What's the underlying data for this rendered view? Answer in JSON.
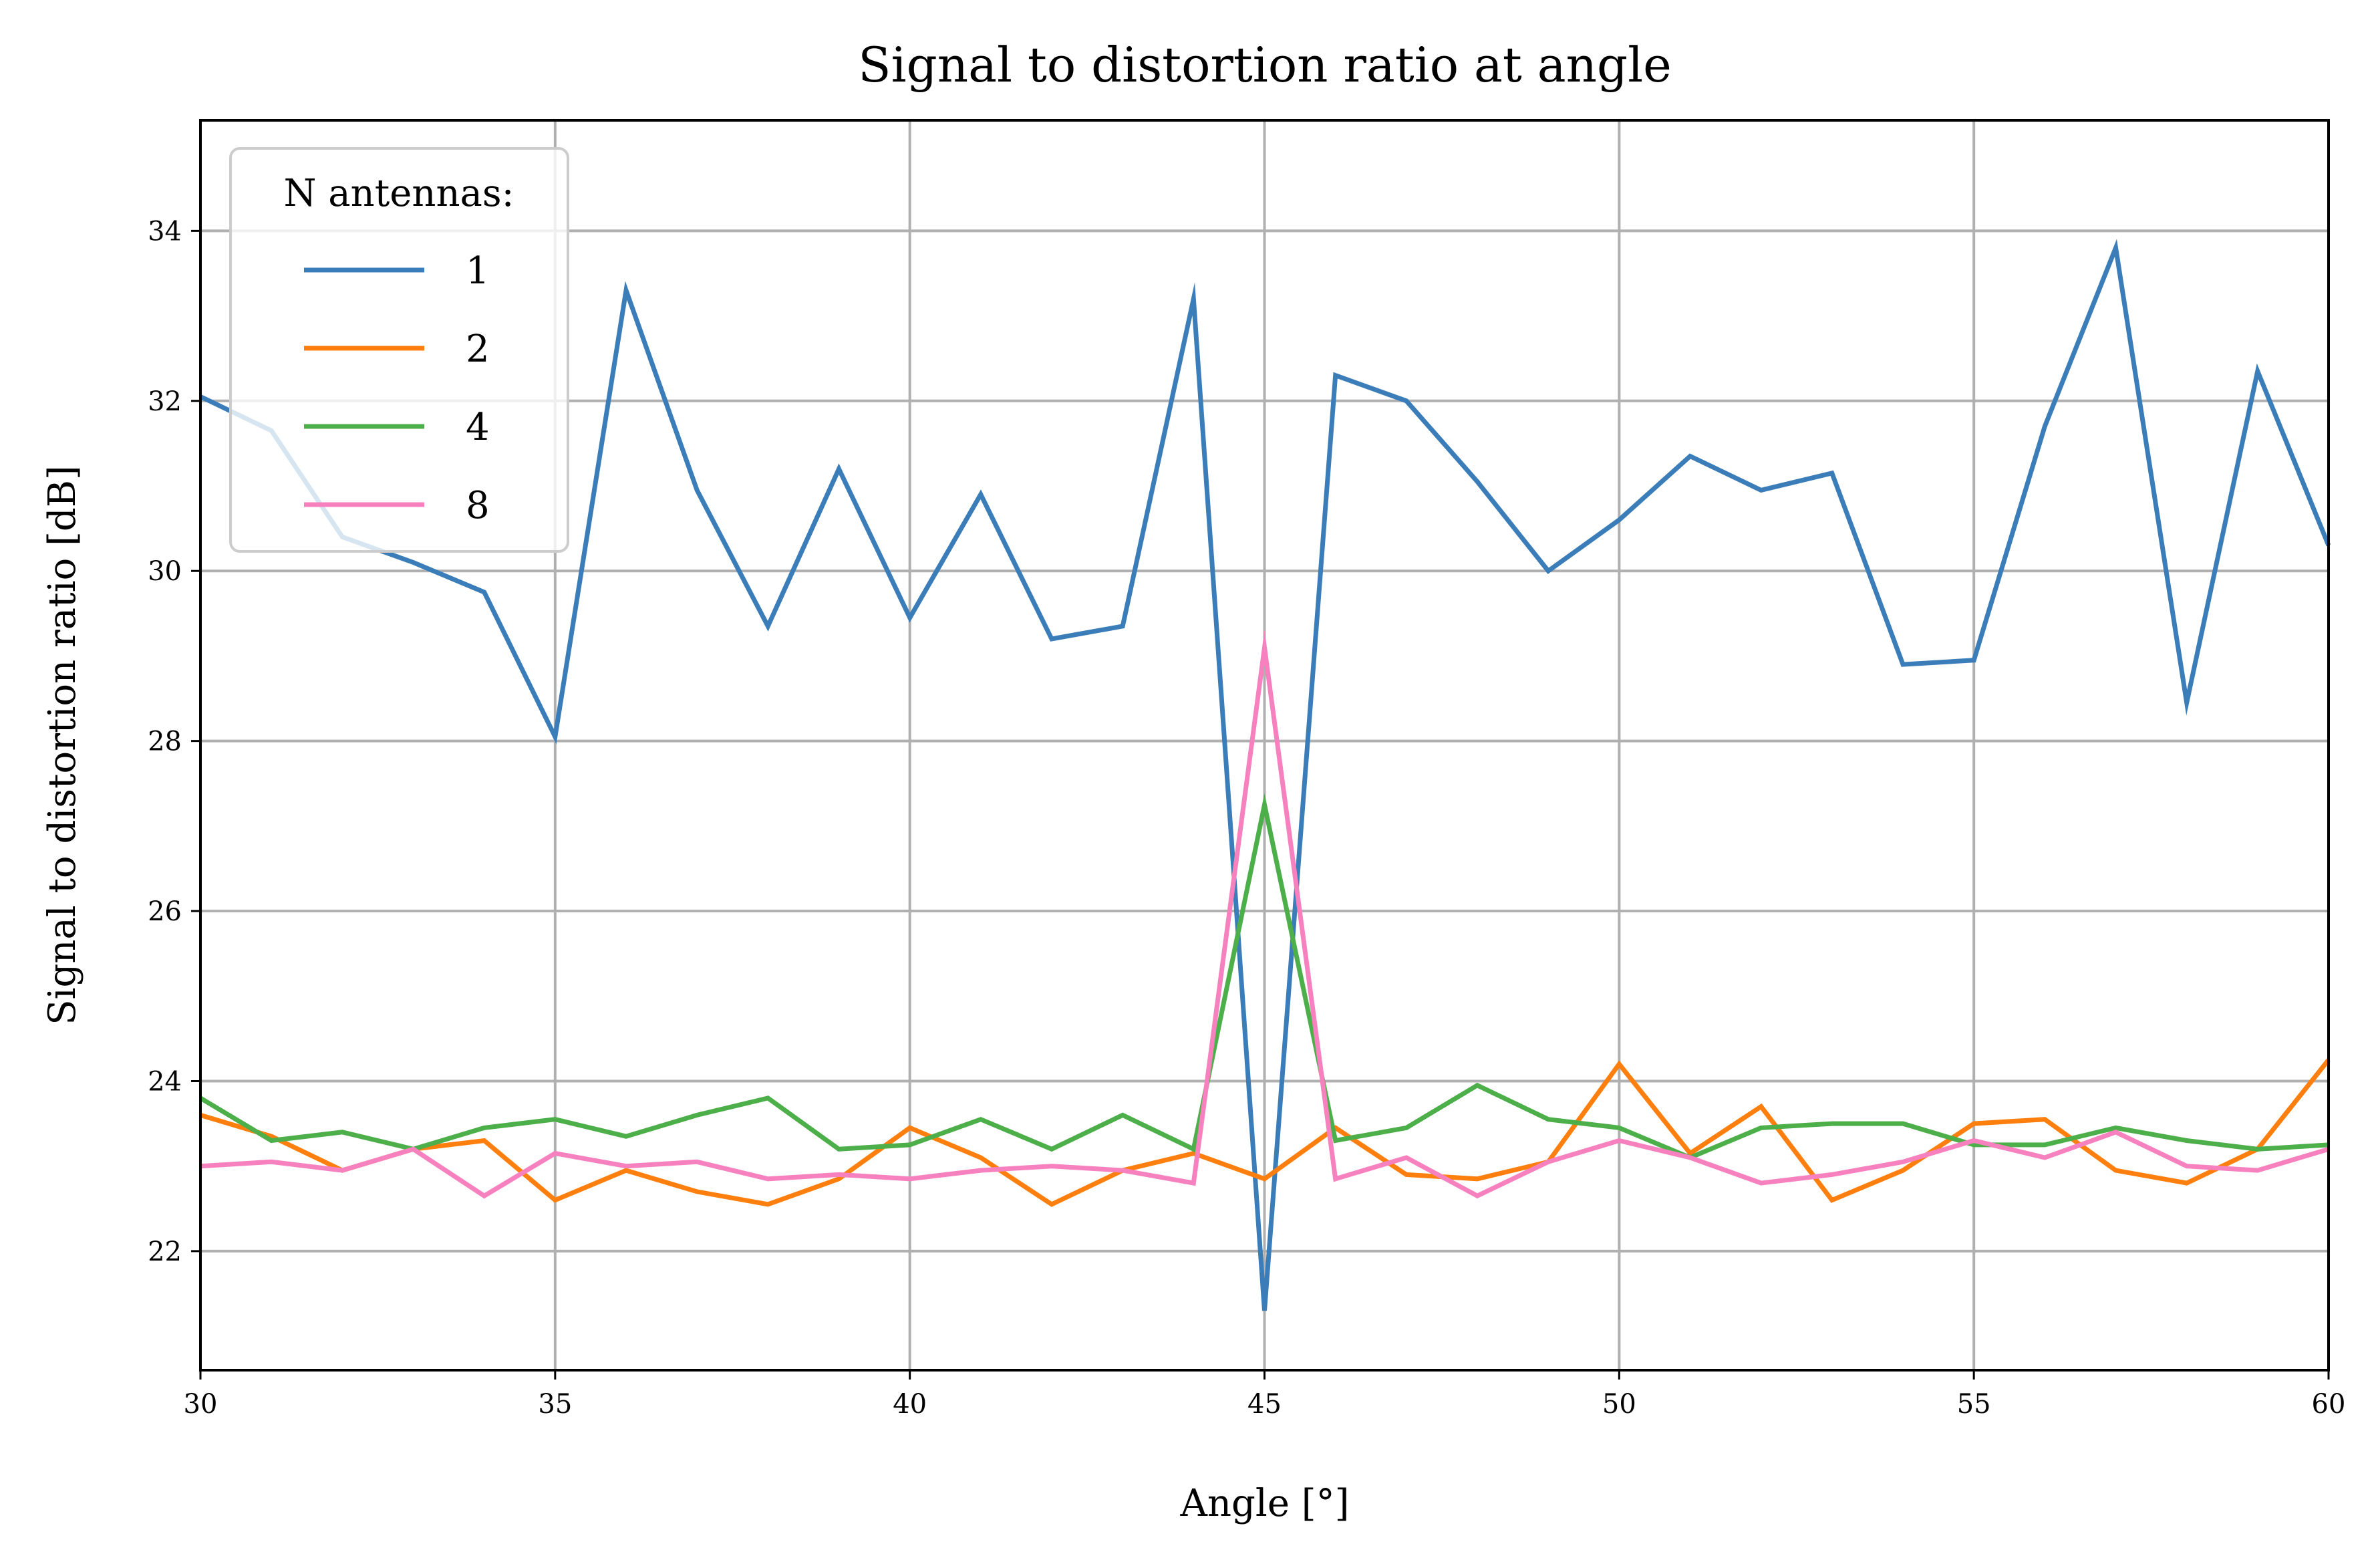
{
  "chart_data": {
    "type": "line",
    "title": "Signal to distortion ratio at angle",
    "xlabel": "Angle [°]",
    "ylabel": "Signal to distortion ratio [dB]",
    "xlim": [
      30,
      60
    ],
    "ylim": [
      20.6,
      35.3
    ],
    "xticks": [
      30,
      35,
      40,
      45,
      50,
      55,
      60
    ],
    "yticks": [
      22,
      24,
      26,
      28,
      30,
      32,
      34
    ],
    "grid": true,
    "legend": {
      "title": "N antennas:",
      "placement": "top-left"
    },
    "x": [
      30,
      31,
      32,
      33,
      34,
      35,
      36,
      37,
      38,
      39,
      40,
      41,
      42,
      43,
      44,
      45,
      46,
      47,
      48,
      49,
      50,
      51,
      52,
      53,
      54,
      55,
      56,
      57,
      58,
      59,
      60
    ],
    "series": [
      {
        "name": "1",
        "color": "#3b7db8",
        "values": [
          32.05,
          31.65,
          30.4,
          30.1,
          29.75,
          28.05,
          33.3,
          30.95,
          29.35,
          31.2,
          29.45,
          30.9,
          29.2,
          29.35,
          33.2,
          21.3,
          32.3,
          32.0,
          31.05,
          30.0,
          30.6,
          31.35,
          30.95,
          31.15,
          28.9,
          28.95,
          31.7,
          33.8,
          28.45,
          32.35,
          30.3
        ]
      },
      {
        "name": "2",
        "color": "#ff7f0e",
        "values": [
          23.6,
          23.35,
          22.95,
          23.2,
          23.3,
          22.6,
          22.95,
          22.7,
          22.55,
          22.85,
          23.45,
          23.1,
          22.55,
          22.95,
          23.15,
          22.85,
          23.45,
          22.9,
          22.85,
          23.05,
          24.2,
          23.15,
          23.7,
          22.6,
          22.95,
          23.5,
          23.55,
          22.95,
          22.8,
          23.2,
          24.25
        ]
      },
      {
        "name": "4",
        "color": "#4daf4a",
        "values": [
          23.8,
          23.3,
          23.4,
          23.2,
          23.45,
          23.55,
          23.35,
          23.6,
          23.8,
          23.2,
          23.25,
          23.55,
          23.2,
          23.6,
          23.2,
          27.25,
          23.3,
          23.45,
          23.95,
          23.55,
          23.45,
          23.1,
          23.45,
          23.5,
          23.5,
          23.25,
          23.25,
          23.45,
          23.3,
          23.2,
          23.25
        ]
      },
      {
        "name": "8",
        "color": "#f781bf",
        "values": [
          23.0,
          23.05,
          22.95,
          23.2,
          22.65,
          23.15,
          23.0,
          23.05,
          22.85,
          22.9,
          22.85,
          22.95,
          23.0,
          22.95,
          22.8,
          29.1,
          22.85,
          23.1,
          22.65,
          23.05,
          23.3,
          23.1,
          22.8,
          22.9,
          23.05,
          23.3,
          23.1,
          23.4,
          23.0,
          22.95,
          23.2
        ]
      }
    ]
  }
}
